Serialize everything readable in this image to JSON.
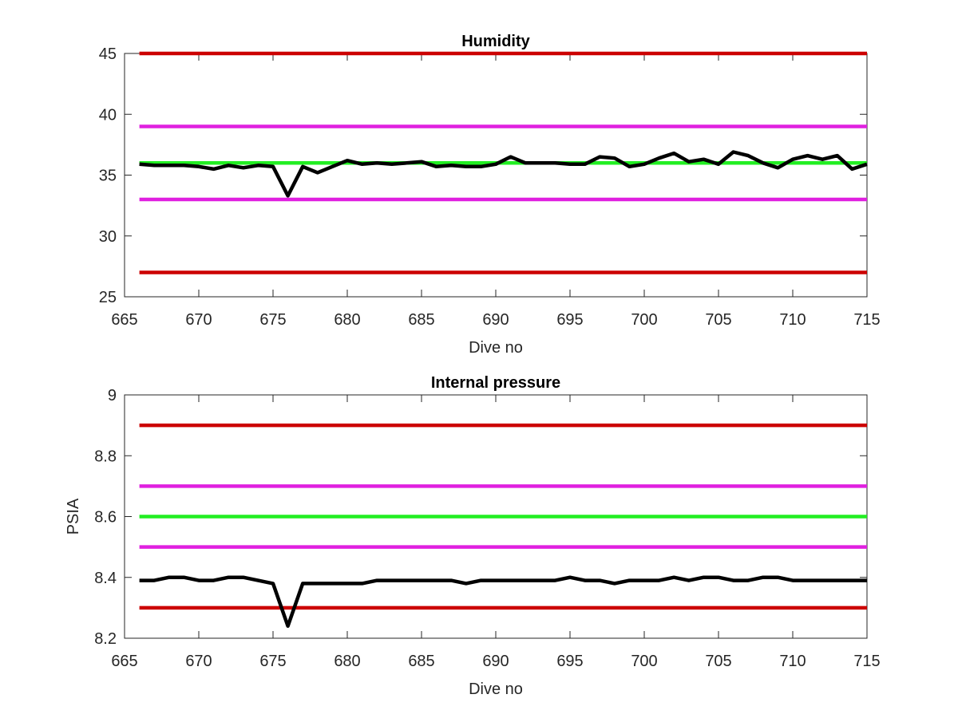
{
  "chart_data": [
    {
      "type": "line",
      "title": "Humidity",
      "xlabel": "Dive no",
      "ylabel": "",
      "xlim": [
        665,
        715
      ],
      "ylim": [
        25,
        45
      ],
      "xticks": [
        "665",
        "670",
        "675",
        "680",
        "685",
        "690",
        "695",
        "700",
        "705",
        "710",
        "715"
      ],
      "yticks": [
        "25",
        "30",
        "35",
        "40",
        "45"
      ],
      "grid": false,
      "legend": "none",
      "reference_lines": [
        {
          "y": 45,
          "color": "#cc0000"
        },
        {
          "y": 39,
          "color": "#e020e0"
        },
        {
          "y": 36,
          "color": "#22ee22"
        },
        {
          "y": 33,
          "color": "#e020e0"
        },
        {
          "y": 27,
          "color": "#cc0000"
        }
      ],
      "series": [
        {
          "color": "#000000",
          "x": [
            666,
            667,
            668,
            669,
            670,
            671,
            672,
            673,
            674,
            675,
            676,
            677,
            678,
            679,
            680,
            681,
            682,
            683,
            684,
            685,
            686,
            687,
            688,
            689,
            690,
            691,
            692,
            693,
            694,
            695,
            696,
            697,
            698,
            699,
            700,
            701,
            702,
            703,
            704,
            705,
            706,
            707,
            708,
            709,
            710,
            711,
            712,
            713,
            714,
            715
          ],
          "y": [
            35.9,
            35.8,
            35.8,
            35.8,
            35.7,
            35.5,
            35.8,
            35.6,
            35.8,
            35.7,
            33.3,
            35.7,
            35.2,
            35.7,
            36.2,
            35.9,
            36.0,
            35.9,
            36.0,
            36.1,
            35.7,
            35.8,
            35.7,
            35.7,
            35.9,
            36.5,
            36.0,
            36.0,
            36.0,
            35.9,
            35.9,
            36.5,
            36.4,
            35.7,
            35.9,
            36.4,
            36.8,
            36.1,
            36.3,
            35.9,
            36.9,
            36.6,
            36.0,
            35.6,
            36.3,
            36.6,
            36.3,
            36.6,
            35.5,
            35.9
          ]
        }
      ]
    },
    {
      "type": "line",
      "title": "Internal pressure",
      "xlabel": "Dive no",
      "ylabel": "PSIA",
      "xlim": [
        665,
        715
      ],
      "ylim": [
        8.2,
        9
      ],
      "xticks": [
        "665",
        "670",
        "675",
        "680",
        "685",
        "690",
        "695",
        "700",
        "705",
        "710",
        "715"
      ],
      "yticks": [
        "8.2",
        "8.4",
        "8.6",
        "8.8",
        "9"
      ],
      "grid": false,
      "legend": "none",
      "reference_lines": [
        {
          "y": 8.9,
          "color": "#cc0000"
        },
        {
          "y": 8.7,
          "color": "#e020e0"
        },
        {
          "y": 8.6,
          "color": "#22ee22"
        },
        {
          "y": 8.5,
          "color": "#e020e0"
        },
        {
          "y": 8.3,
          "color": "#cc0000"
        }
      ],
      "series": [
        {
          "color": "#000000",
          "x": [
            666,
            667,
            668,
            669,
            670,
            671,
            672,
            673,
            674,
            675,
            676,
            677,
            678,
            679,
            680,
            681,
            682,
            683,
            684,
            685,
            686,
            687,
            688,
            689,
            690,
            691,
            692,
            693,
            694,
            695,
            696,
            697,
            698,
            699,
            700,
            701,
            702,
            703,
            704,
            705,
            706,
            707,
            708,
            709,
            710,
            711,
            712,
            713,
            714,
            715
          ],
          "y": [
            8.39,
            8.39,
            8.4,
            8.4,
            8.39,
            8.39,
            8.4,
            8.4,
            8.39,
            8.38,
            8.24,
            8.38,
            8.38,
            8.38,
            8.38,
            8.38,
            8.39,
            8.39,
            8.39,
            8.39,
            8.39,
            8.39,
            8.38,
            8.39,
            8.39,
            8.39,
            8.39,
            8.39,
            8.39,
            8.4,
            8.39,
            8.39,
            8.38,
            8.39,
            8.39,
            8.39,
            8.4,
            8.39,
            8.4,
            8.4,
            8.39,
            8.39,
            8.4,
            8.4,
            8.39,
            8.39,
            8.39,
            8.39,
            8.39,
            8.39
          ]
        }
      ]
    }
  ]
}
